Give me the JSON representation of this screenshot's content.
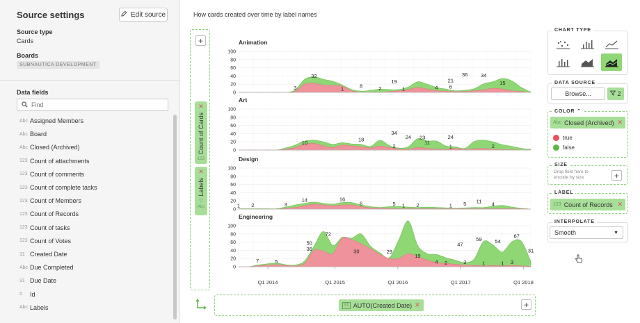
{
  "left_panel": {
    "title": "Source settings",
    "edit_button": "Edit source",
    "source_type_label": "Source type",
    "source_type_value": "Cards",
    "boards_label": "Boards",
    "boards_value": "SUBNAUTICA DEVELOPMENT",
    "data_fields_label": "Data fields",
    "find_placeholder": "Find",
    "fields": [
      {
        "type": "Abc",
        "name": "Assigned Members"
      },
      {
        "type": "Abc",
        "name": "Board"
      },
      {
        "type": "Abc",
        "name": "Closed (Archived)"
      },
      {
        "type": "123",
        "name": "Count of attachments"
      },
      {
        "type": "123",
        "name": "Count of comments"
      },
      {
        "type": "123",
        "name": "Count of complete tasks"
      },
      {
        "type": "123",
        "name": "Count of Members"
      },
      {
        "type": "123",
        "name": "Count of Records"
      },
      {
        "type": "123",
        "name": "Count of tasks"
      },
      {
        "type": "123",
        "name": "Count of Votes"
      },
      {
        "type": "31",
        "name": "Created Date"
      },
      {
        "type": "Abc",
        "name": "Due Completed"
      },
      {
        "type": "31",
        "name": "Due Date"
      },
      {
        "type": "#",
        "name": "Id"
      },
      {
        "type": "Abc",
        "name": "Labels"
      }
    ]
  },
  "center": {
    "title": "How cards created over time by label names",
    "row_encoding_1": "Count of Cards",
    "row_encoding_1_type": "123",
    "row_encoding_2": "Labels",
    "row_encoding_2_type": "Abc",
    "x_encoding": "AUTO(Created Date)",
    "x_encoding_type": "31"
  },
  "right_panel": {
    "chart_type_label": "CHART TYPE",
    "data_source_label": "DATA SOURCE",
    "browse_label": "Browse...",
    "filter_count": "2",
    "color_label": "COLOR",
    "color_field": "Closed (Archived)",
    "color_field_type": "Abc",
    "legend_true": "true",
    "legend_false": "false",
    "size_label": "SIZE",
    "size_hint": "Drop field here to encode by size",
    "label_label": "LABEL",
    "label_field": "Count of Records",
    "label_field_type": "123",
    "interpolate_label": "INTERPOLATE",
    "interpolate_value": "Smooth"
  },
  "colors": {
    "true": "#f0929b",
    "false": "#8fd674",
    "accent": "#a8df98"
  },
  "chart_data": {
    "type": "area",
    "stacked": true,
    "interpolation": "smooth",
    "x_ticks": [
      "Q1 2014",
      "Q1 2015",
      "Q1 2016",
      "Q1 2017",
      "Q1 2018"
    ],
    "y_ticks": [
      0,
      20,
      40,
      60,
      80,
      100
    ],
    "ylim": [
      0,
      100
    ],
    "series_names": [
      "true",
      "false"
    ],
    "panels": [
      {
        "name": "Animation",
        "true": [
          0,
          0,
          0,
          0,
          0,
          0,
          3,
          20,
          22,
          18,
          17,
          15,
          4,
          0,
          0,
          0,
          2,
          4,
          7,
          12,
          8,
          4,
          3,
          2,
          2,
          4,
          6,
          10,
          8,
          4,
          2,
          0
        ],
        "false": [
          0,
          0,
          0,
          0,
          0,
          0,
          3,
          12,
          16,
          14,
          10,
          3,
          3,
          3,
          5,
          8,
          5,
          3,
          6,
          14,
          12,
          8,
          5,
          2,
          3,
          5,
          15,
          16,
          26,
          24,
          10,
          1
        ],
        "labels": [
          [
            6,
            3,
            "3"
          ],
          [
            8,
            32,
            "32"
          ],
          [
            11,
            1,
            "1"
          ],
          [
            13,
            8,
            "8"
          ],
          [
            15,
            2,
            "2"
          ],
          [
            16.5,
            19,
            "19"
          ],
          [
            17.5,
            1,
            "1"
          ],
          [
            21,
            4,
            "4"
          ],
          [
            22.5,
            6,
            "6"
          ],
          [
            22.5,
            21,
            "21"
          ],
          [
            24,
            36,
            "36"
          ],
          [
            26,
            34,
            "34"
          ],
          [
            28,
            15,
            "15"
          ]
        ]
      },
      {
        "name": "Art",
        "true": [
          0,
          0,
          0,
          0,
          0,
          2,
          6,
          14,
          16,
          10,
          6,
          12,
          10,
          8,
          5,
          10,
          6,
          3,
          2,
          6,
          4,
          2,
          2,
          4,
          2,
          3,
          4,
          2,
          1,
          1,
          0,
          0
        ],
        "false": [
          0,
          0,
          0,
          0,
          0,
          3,
          6,
          8,
          8,
          10,
          8,
          6,
          5,
          6,
          4,
          14,
          5,
          2,
          6,
          22,
          18,
          20,
          8,
          4,
          2,
          18,
          20,
          18,
          12,
          8,
          4,
          2
        ],
        "labels": [
          [
            7,
            10,
            "10"
          ],
          [
            13,
            18,
            "18"
          ],
          [
            16.5,
            2,
            "2"
          ],
          [
            16.5,
            34,
            "34"
          ],
          [
            18,
            24,
            "24"
          ],
          [
            19.5,
            23,
            "23"
          ],
          [
            20,
            11,
            "11"
          ],
          [
            22.5,
            1,
            "1"
          ],
          [
            22.5,
            24,
            "24"
          ],
          [
            27,
            2,
            "2"
          ]
        ]
      },
      {
        "name": "Design",
        "true": [
          0,
          0,
          0,
          0,
          0,
          2,
          4,
          8,
          12,
          10,
          8,
          10,
          10,
          6,
          3,
          2,
          2,
          1,
          1,
          1,
          1,
          1,
          1,
          1,
          1,
          1,
          1,
          1,
          1,
          1,
          1,
          0
        ],
        "false": [
          1,
          1,
          1,
          1,
          1,
          3,
          6,
          6,
          5,
          4,
          4,
          6,
          6,
          4,
          3,
          2,
          4,
          5,
          4,
          3,
          4,
          3,
          2,
          1,
          2,
          3,
          3,
          6,
          8,
          4,
          1,
          0
        ],
        "labels": [
          [
            0,
            1,
            "1"
          ],
          [
            1.5,
            2,
            "2"
          ],
          [
            5,
            3,
            "3"
          ],
          [
            7,
            14,
            "14"
          ],
          [
            11,
            16,
            "16"
          ],
          [
            13,
            6,
            "6"
          ],
          [
            16.5,
            5,
            "5"
          ],
          [
            17.5,
            1,
            "1"
          ],
          [
            19,
            2,
            "2"
          ],
          [
            22.5,
            1,
            "1"
          ],
          [
            24,
            5,
            "5"
          ],
          [
            25.5,
            11,
            "11"
          ],
          [
            27,
            4,
            "4"
          ]
        ]
      },
      {
        "name": "Engineering",
        "true": [
          0,
          0,
          2,
          4,
          5,
          3,
          2,
          8,
          40,
          38,
          32,
          70,
          66,
          56,
          44,
          30,
          20,
          20,
          32,
          24,
          16,
          10,
          8,
          6,
          4,
          3,
          2,
          3,
          2,
          3,
          2,
          1
        ],
        "false": [
          0,
          0,
          2,
          3,
          4,
          2,
          2,
          6,
          10,
          48,
          20,
          2,
          4,
          24,
          6,
          4,
          2,
          46,
          80,
          28,
          16,
          20,
          14,
          10,
          6,
          16,
          60,
          50,
          34,
          58,
          60,
          12
        ],
        "labels": [
          [
            2,
            7,
            "7"
          ],
          [
            4,
            5,
            "5"
          ],
          [
            7.5,
            50,
            "50"
          ],
          [
            7.5,
            36,
            "36"
          ],
          [
            9.5,
            72,
            "72"
          ],
          [
            12.5,
            30,
            "30"
          ],
          [
            16,
            29,
            "29"
          ],
          [
            19,
            19,
            "19"
          ],
          [
            21,
            4,
            "4"
          ],
          [
            22,
            2,
            "2"
          ],
          [
            23.5,
            47,
            "47"
          ],
          [
            24,
            3,
            "3"
          ],
          [
            25.5,
            59,
            "59"
          ],
          [
            26,
            1,
            "1"
          ],
          [
            27.5,
            54,
            "54"
          ],
          [
            28,
            1,
            "1"
          ],
          [
            29.5,
            67,
            "67"
          ],
          [
            29,
            3,
            "3"
          ],
          [
            31,
            31,
            "31"
          ]
        ]
      }
    ]
  }
}
